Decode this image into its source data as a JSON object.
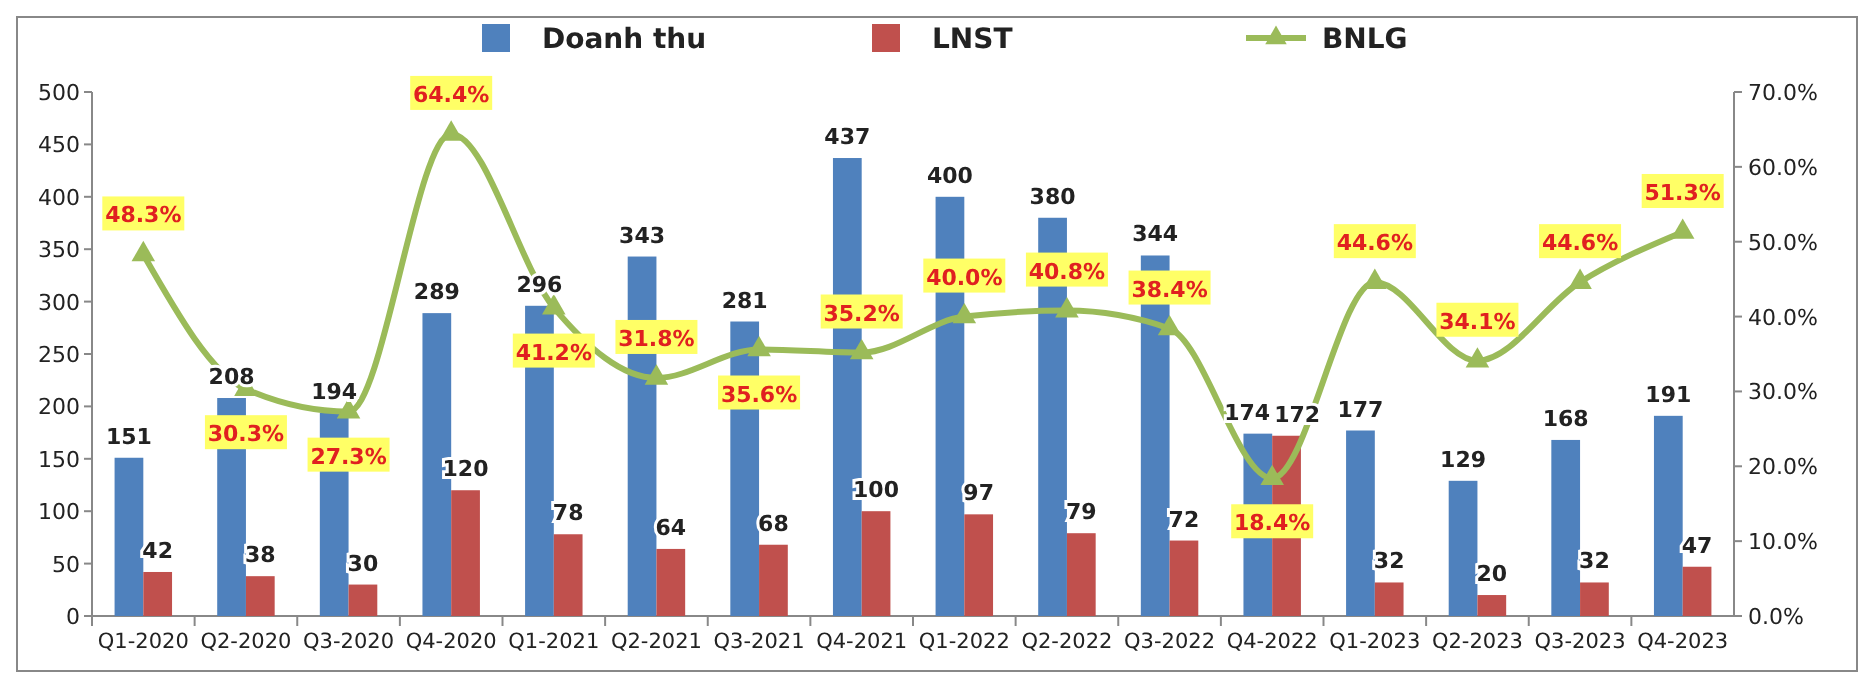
{
  "chart_data": {
    "type": "bar",
    "categories": [
      "Q1-2020",
      "Q2-2020",
      "Q3-2020",
      "Q4-2020",
      "Q1-2021",
      "Q2-2021",
      "Q3-2021",
      "Q4-2021",
      "Q1-2022",
      "Q2-2022",
      "Q3-2022",
      "Q4-2022",
      "Q1-2023",
      "Q2-2023",
      "Q3-2023",
      "Q4-2023"
    ],
    "series": [
      {
        "name": "Doanh thu",
        "color": "#4f81bd",
        "values": [
          151,
          208,
          194,
          289,
          296,
          343,
          281,
          437,
          400,
          380,
          344,
          174,
          177,
          129,
          168,
          191
        ],
        "value_labels": [
          "151",
          "208",
          "194",
          "289",
          "296",
          "343",
          "281",
          "437",
          "400",
          "380",
          "344",
          "174",
          "177",
          "129",
          "168",
          "191"
        ]
      },
      {
        "name": "LNST",
        "color": "#c0504d",
        "values": [
          42,
          38,
          30,
          120,
          78,
          64,
          68,
          100,
          97,
          79,
          72,
          172,
          32,
          20,
          32,
          47
        ],
        "value_labels": [
          "42",
          "38",
          "30",
          "120",
          "78",
          "64",
          "68",
          "100",
          "97",
          "79",
          "72",
          "172",
          "32",
          "20",
          "32",
          "47"
        ]
      },
      {
        "name": "BNLG",
        "type": "line",
        "axis": "y2",
        "color": "#9bbb59",
        "marker": "triangle",
        "values": [
          48.3,
          30.3,
          27.3,
          64.4,
          41.2,
          31.8,
          35.6,
          35.2,
          40.0,
          40.8,
          38.4,
          18.4,
          44.6,
          34.1,
          44.6,
          51.3
        ],
        "value_labels": [
          "48.3%",
          "30.3%",
          "27.3%",
          "64.4%",
          "41.2%",
          "31.8%",
          "35.6%",
          "35.2%",
          "40.0%",
          "40.8%",
          "38.4%",
          "18.4%",
          "44.6%",
          "34.1%",
          "44.6%",
          "51.3%"
        ]
      }
    ],
    "ylim": [
      0,
      500
    ],
    "yticks": [
      0,
      50,
      100,
      150,
      200,
      250,
      300,
      350,
      400,
      450,
      500
    ],
    "y2lim": [
      0,
      70
    ],
    "y2ticks": [
      {
        "value": 0,
        "label": "0.0%"
      },
      {
        "value": 10,
        "label": "10.0%"
      },
      {
        "value": 20,
        "label": "20.0%"
      },
      {
        "value": 30,
        "label": "30.0%"
      },
      {
        "value": 40,
        "label": "40.0%"
      },
      {
        "value": 50,
        "label": "50.0%"
      },
      {
        "value": 60,
        "label": "60.0%"
      },
      {
        "value": 70,
        "label": "70.0%"
      }
    ],
    "grid": false,
    "legend": "top"
  }
}
